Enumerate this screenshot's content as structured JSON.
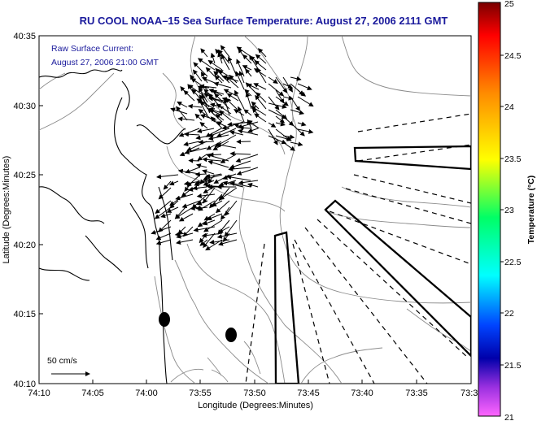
{
  "title": "RU COOL  NOAA–15  Sea Surface Temperature:  August 27, 2006 2111 GMT",
  "note": {
    "line1": "Raw Surface Current:",
    "line2": "August 27, 2006 21:00 GMT"
  },
  "x_axis": {
    "label": "Longitude (Degrees:Minutes)",
    "ticks": [
      "74:10",
      "74:05",
      "74:00",
      "73:55",
      "73:50",
      "73:45",
      "73:40",
      "73:35",
      "73:3"
    ]
  },
  "y_axis": {
    "label": "Latitude (Degrees:Minutes)",
    "ticks": [
      "40:35",
      "40:30",
      "40:25",
      "40:20",
      "40:15",
      "40:10"
    ]
  },
  "scale_label": "50 cm/s",
  "colorbar": {
    "label": "Temperature (°C)",
    "ticks": [
      "25",
      "24.5",
      "24",
      "23.5",
      "23",
      "22.5",
      "22",
      "21.5",
      "21"
    ],
    "colors": [
      "#8b0000",
      "#ff0000",
      "#ff8c00",
      "#ffff00",
      "#00ff66",
      "#00ffff",
      "#0040ff",
      "#0000aa",
      "#8a2be2",
      "#ff66ff"
    ]
  },
  "colors": {
    "title": "#1a1a9c",
    "land_outline": "#000000",
    "bathymetry": "#808080",
    "vectors": "#000000"
  }
}
